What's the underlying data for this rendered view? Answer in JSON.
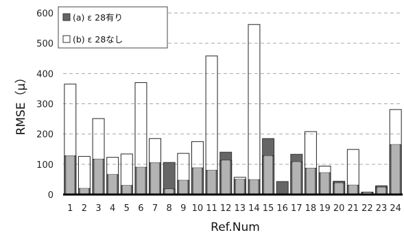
{
  "chart_data": {
    "type": "bar",
    "xlabel": "Ref.Num",
    "ylabel": "RMSE（μ）",
    "ylim": [
      0,
      600
    ],
    "yticks": [
      0,
      100,
      200,
      300,
      400,
      500,
      600
    ],
    "grid": "horizontal dashed",
    "legend_position": "top-left",
    "categories": [
      "1",
      "2",
      "3",
      "4",
      "5",
      "6",
      "7",
      "8",
      "9",
      "10",
      "11",
      "12",
      "13",
      "14",
      "15",
      "16",
      "17",
      "18",
      "19",
      "20",
      "21",
      "22",
      "23",
      "24"
    ],
    "series": [
      {
        "name": "(a) ε 28有り",
        "color": "#666666",
        "values": [
          128,
          20,
          117,
          66,
          30,
          90,
          105,
          106,
          47,
          88,
          80,
          140,
          50,
          49,
          185,
          43,
          133,
          87,
          72,
          44,
          31,
          7,
          29,
          165
        ]
      },
      {
        "name": "(b) ε 28なし",
        "color": "#ffffff",
        "values": [
          365,
          126,
          251,
          123,
          134,
          370,
          185,
          18,
          136,
          175,
          458,
          113,
          57,
          562,
          128,
          0,
          108,
          208,
          94,
          38,
          149,
          8,
          24,
          281
        ]
      }
    ],
    "overlap_fill_color": "#b3b3b3"
  }
}
